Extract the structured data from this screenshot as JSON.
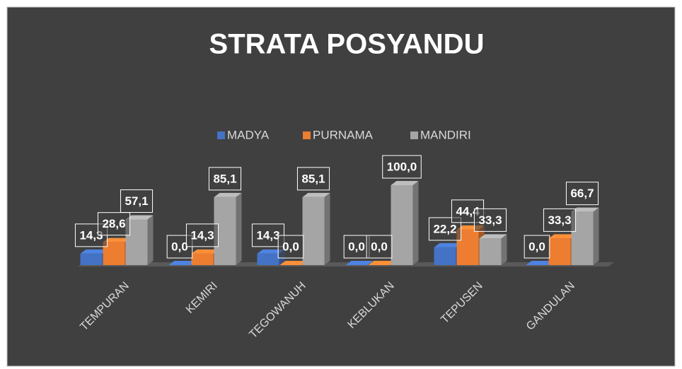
{
  "chart_data": {
    "type": "bar3d",
    "title": "STRATA POSYANDU",
    "categories": [
      "TEMPURAN",
      "KEMIRI",
      "TEGOWANUH",
      "KEBLUKAN",
      "TEPUSEN",
      "GANDULAN"
    ],
    "series": [
      {
        "name": "MADYA",
        "color": "#4472c4",
        "values": [
          14.3,
          0.0,
          14.3,
          0.0,
          22.2,
          0.0
        ],
        "value_labels": [
          "14,3",
          "0,0",
          "14,3",
          "0,0",
          "22,2",
          "0,0"
        ]
      },
      {
        "name": "PURNAMA",
        "color": "#ed7d31",
        "values": [
          28.6,
          14.3,
          0.0,
          0.0,
          44.4,
          33.3
        ],
        "value_labels": [
          "28,6",
          "14,3",
          "0,0",
          "0,0",
          "44,4",
          "33,3"
        ]
      },
      {
        "name": "MANDIRI",
        "color": "#a5a5a5",
        "values": [
          57.1,
          85.1,
          85.1,
          100.0,
          33.3,
          66.7
        ],
        "value_labels": [
          "57,1",
          "85,1",
          "85,1",
          "100,0",
          "33,3",
          "66,7"
        ]
      }
    ],
    "legend": "top"
  }
}
